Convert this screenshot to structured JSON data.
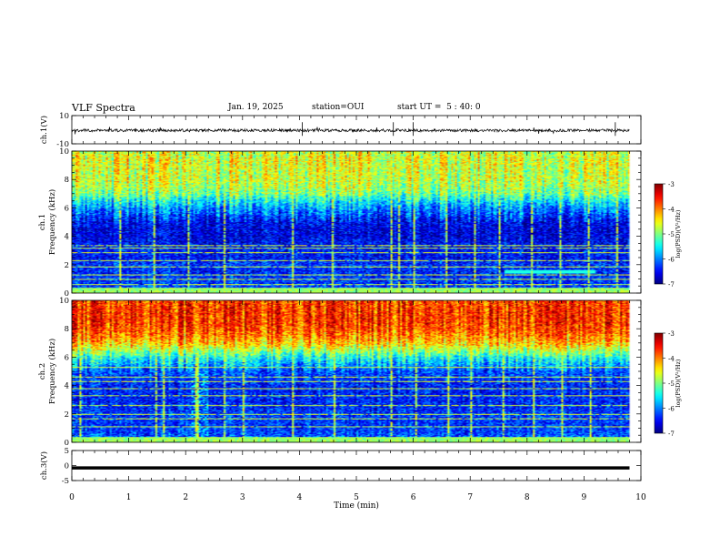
{
  "header": {
    "title": "VLF Spectra",
    "date": "Jan. 19, 2025",
    "station": "station=OUI",
    "start": "start UT =  5 : 40: 0"
  },
  "chart_data": [
    {
      "type": "line",
      "ylabel": "ch.1(V)",
      "x": [
        0,
        9.8
      ],
      "xlim": [
        0,
        10
      ],
      "ylim": [
        -10,
        10
      ],
      "ytick_labels": [
        "10",
        "-10"
      ],
      "series": [
        {
          "values": [
            -0.5,
            -0.5
          ],
          "noise": "high-frequency ±1 V"
        }
      ],
      "color": "#000000"
    },
    {
      "type": "heatmap",
      "channel_label": "ch.1",
      "ylabel": "Frequency (kHz)",
      "xlim": [
        0,
        10
      ],
      "ylim": [
        0,
        10
      ],
      "ytick_labels": [
        "0",
        "2",
        "4",
        "6",
        "8",
        "10"
      ],
      "data_x_extent": [
        0,
        9.8
      ],
      "colorbar": {
        "label": "log(PSD)(V²/Hz)",
        "range": [
          -7,
          -3
        ],
        "tick_labels": [
          "-3",
          "-4",
          "-5",
          "-6",
          "-7"
        ],
        "colormap": "jet"
      },
      "frequency_profile_log_psd": {
        "frequency_khz": [
          0,
          0.5,
          1,
          1.5,
          2,
          2.5,
          3,
          3.5,
          4,
          4.5,
          5,
          5.5,
          6,
          6.5,
          7,
          7.5,
          8,
          8.5,
          9,
          9.5,
          10
        ],
        "values": [
          -5.8,
          -6.3,
          -6.3,
          -6.4,
          -6.3,
          -6.5,
          -6.4,
          -6.5,
          -6.6,
          -6.6,
          -6.5,
          -6.2,
          -5.9,
          -5.5,
          -5.0,
          -4.8,
          -4.7,
          -4.7,
          -4.6,
          -4.6,
          -4.7
        ]
      },
      "horizontal_lines_khz": [
        0.3,
        0.6,
        1.0,
        1.3,
        1.9,
        2.3,
        2.9,
        3.2,
        3.4
      ],
      "vertical_impulse_times_min": [
        0.85,
        1.42,
        2.05,
        2.68,
        3.85,
        4.55,
        5.6,
        5.72,
        6.0,
        6.55,
        7.05,
        7.5,
        8.08,
        8.55,
        9.08,
        9.55
      ],
      "event": {
        "time_min": [
          7.6,
          9.2
        ],
        "frequency_khz": 1.5
      }
    },
    {
      "type": "heatmap",
      "channel_label": "ch.2",
      "ylabel": "Frequency (kHz)",
      "xlim": [
        0,
        10
      ],
      "ylim": [
        0,
        10
      ],
      "ytick_labels": [
        "0",
        "2",
        "4",
        "6",
        "8",
        "10"
      ],
      "data_x_extent": [
        0,
        9.8
      ],
      "colorbar": {
        "label": "log(PSD)(V²/Hz)",
        "range": [
          -7,
          -3
        ],
        "tick_labels": [
          "-3",
          "-4",
          "-5",
          "-6",
          "-7"
        ],
        "colormap": "jet"
      },
      "frequency_profile_log_psd": {
        "frequency_khz": [
          0,
          0.5,
          1,
          1.5,
          2,
          2.5,
          3,
          3.5,
          4,
          4.5,
          5,
          5.5,
          6,
          6.5,
          7,
          7.5,
          8,
          8.5,
          9,
          9.5,
          10
        ],
        "values": [
          -5.8,
          -6.2,
          -6.3,
          -6.3,
          -6.3,
          -6.4,
          -6.4,
          -6.4,
          -6.4,
          -6.3,
          -6.2,
          -5.8,
          -5.4,
          -4.8,
          -4.3,
          -4.0,
          -3.8,
          -3.7,
          -3.7,
          -3.7,
          -3.8
        ]
      },
      "horizontal_lines_khz": [
        0.4,
        1.1,
        1.7,
        2.0,
        2.6,
        3.3,
        3.8,
        4.3,
        4.6,
        5.3
      ],
      "vertical_impulse_times_min": [
        0.12,
        1.48,
        1.6,
        2.15,
        2.2,
        2.68,
        3.0,
        3.85,
        4.6,
        5.6,
        6.02,
        6.6,
        7.0,
        7.55,
        8.1,
        8.6,
        9.1
      ],
      "event": {
        "time_min": [
          2.1,
          2.4
        ],
        "frequency_khz": [
          0,
          5
        ]
      }
    },
    {
      "type": "line",
      "ylabel": "ch.3(V)",
      "xlabel": "Time (min)",
      "x": [
        0,
        9.8
      ],
      "xlim": [
        0,
        10
      ],
      "ylim": [
        -5,
        5
      ],
      "ytick_labels": [
        "5",
        "0",
        "-5"
      ],
      "xtick_labels": [
        "0",
        "1",
        "2",
        "3",
        "4",
        "5",
        "6",
        "7",
        "8",
        "9",
        "10"
      ],
      "series": [
        {
          "values": [
            -0.8,
            -0.8
          ]
        }
      ],
      "color": "#000000"
    }
  ]
}
